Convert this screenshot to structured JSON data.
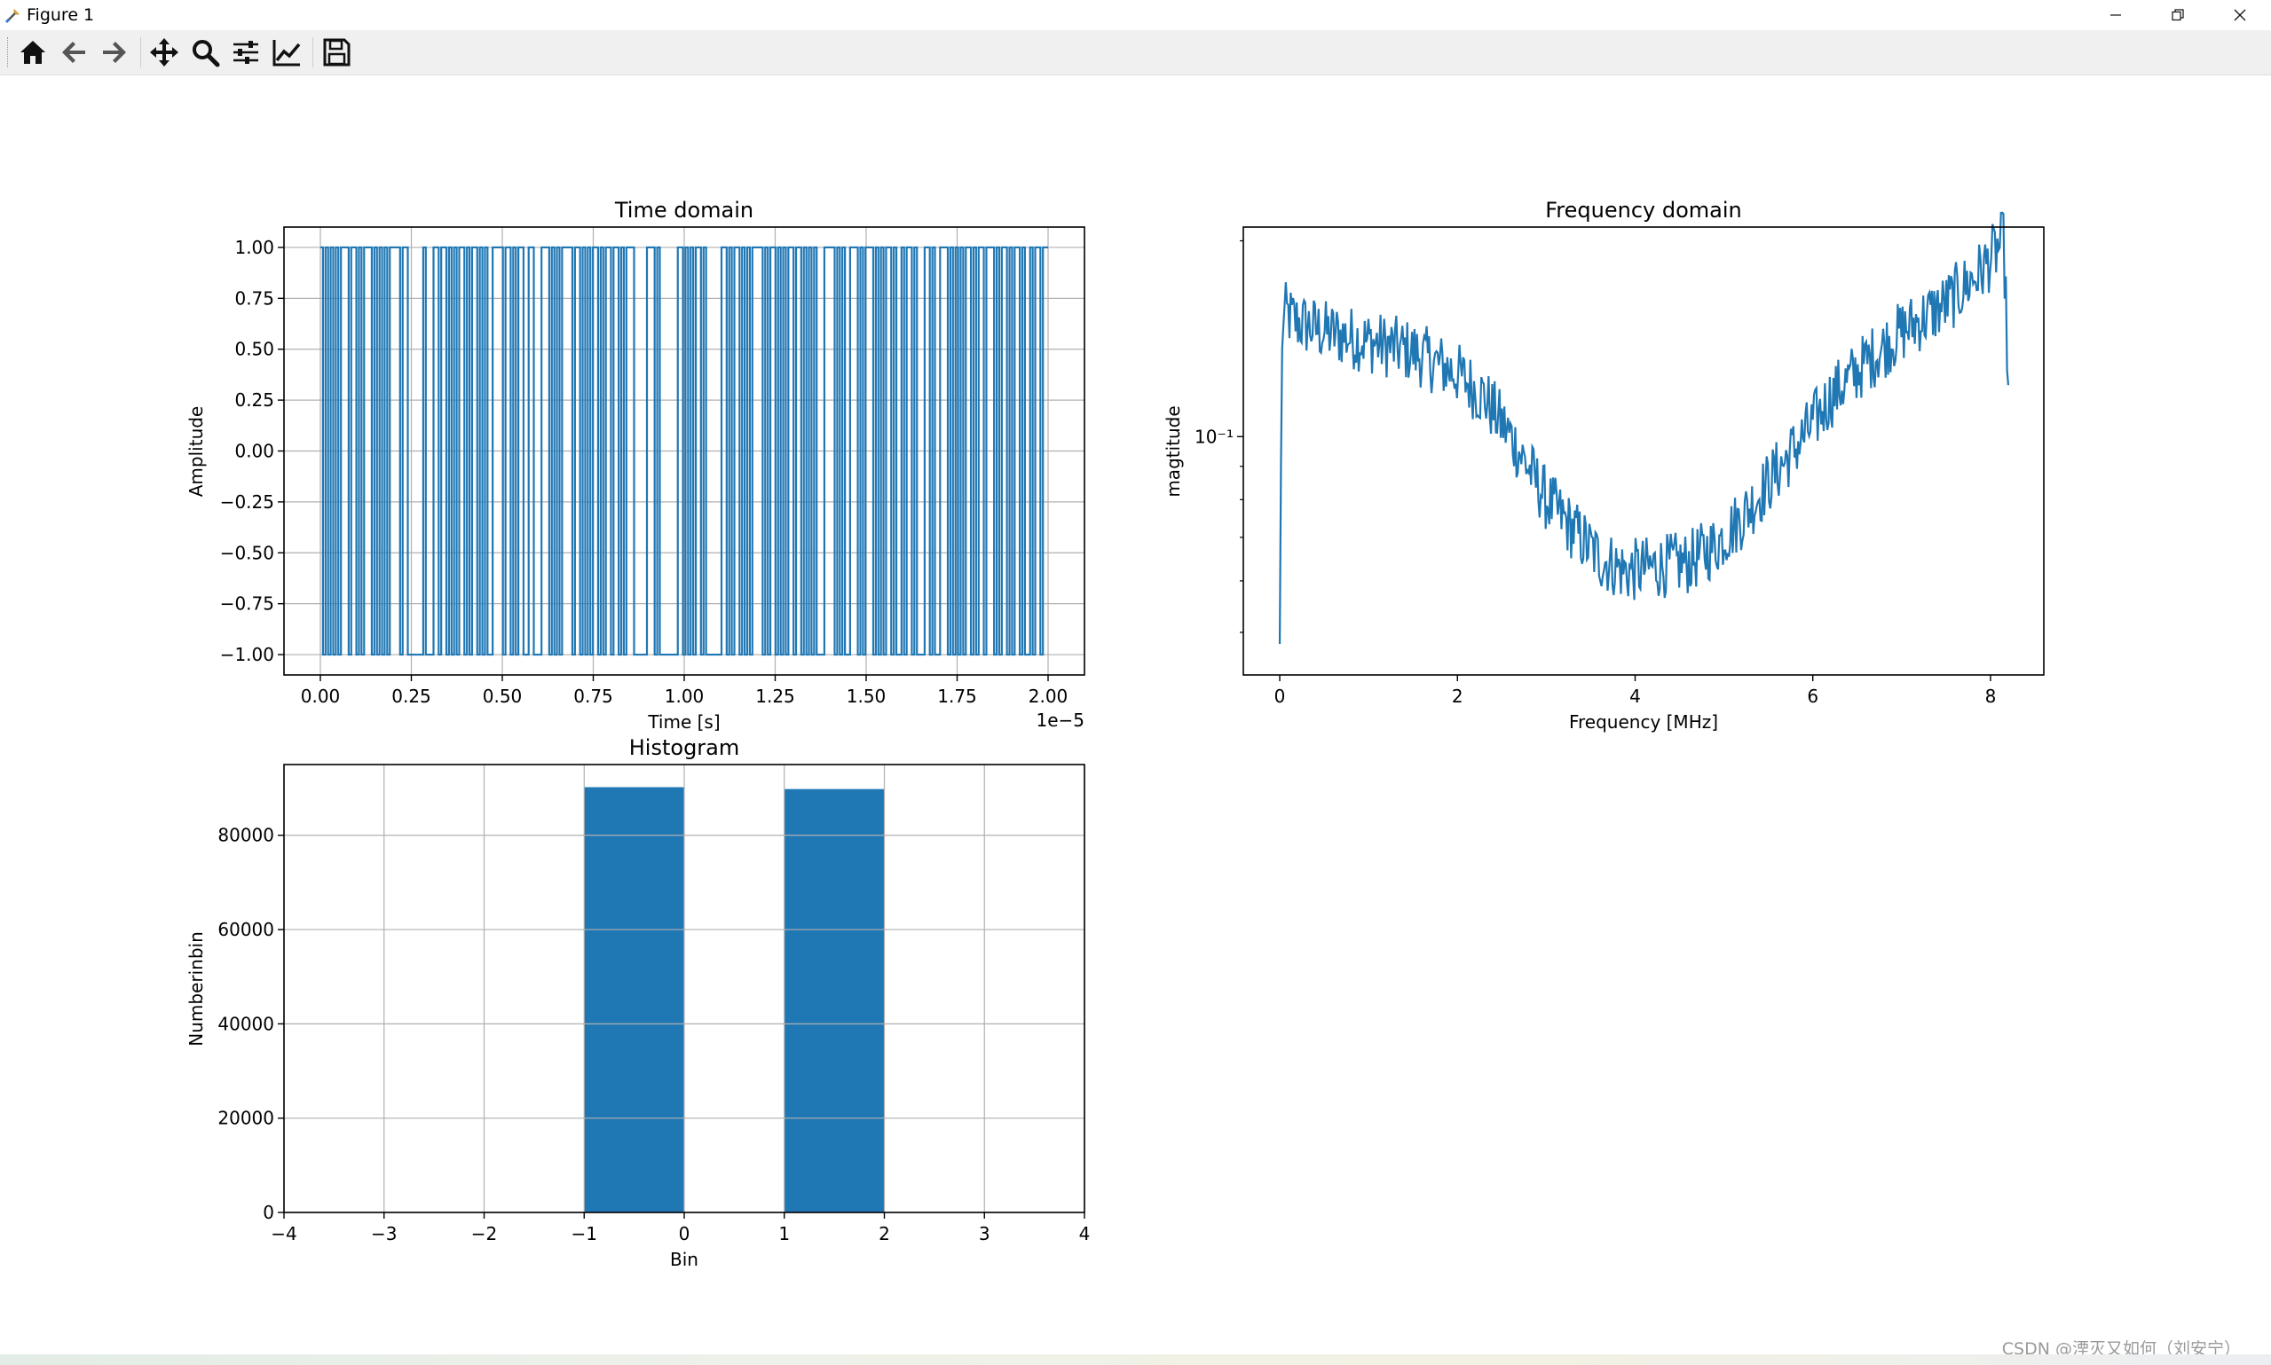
{
  "window": {
    "title": "Figure 1"
  },
  "toolbar": {
    "buttons": [
      {
        "name": "home-button",
        "icon": "home-icon"
      },
      {
        "name": "back-button",
        "icon": "arrow-left-icon"
      },
      {
        "name": "forward-button",
        "icon": "arrow-right-icon"
      },
      {
        "name": "pan-button",
        "icon": "move-icon"
      },
      {
        "name": "zoom-button",
        "icon": "magnifier-icon"
      },
      {
        "name": "configure-subplots-button",
        "icon": "sliders-icon"
      },
      {
        "name": "edit-axes-button",
        "icon": "line-chart-icon"
      },
      {
        "name": "save-button",
        "icon": "floppy-disk-icon"
      }
    ]
  },
  "watermark": "CSDN @湮灭又如何（刘安宁）",
  "colors": {
    "series": "#1f77b4",
    "grid": "#b0b0b0",
    "toolbar_bg": "#f0f0f0"
  },
  "chart_data": [
    {
      "type": "line",
      "title": "Time domain",
      "xlabel": "Time [s]",
      "ylabel": "Amplitude",
      "x_offset_label": "1e−5",
      "xlim": [
        -0.1,
        2.1
      ],
      "ylim": [
        -1.1,
        1.1
      ],
      "xticks": [
        0.0,
        0.25,
        0.5,
        0.75,
        1.0,
        1.25,
        1.5,
        1.75,
        2.0
      ],
      "xticklabels": [
        "0.00",
        "0.25",
        "0.50",
        "0.75",
        "1.00",
        "1.25",
        "1.50",
        "1.75",
        "2.00"
      ],
      "yticks": [
        1.0,
        0.75,
        0.5,
        0.25,
        0.0,
        -0.25,
        -0.5,
        -0.75,
        -1.0
      ],
      "yticklabels": [
        "1.00",
        "0.75",
        "0.50",
        "0.25",
        "0.00",
        "−0.25",
        "−0.50",
        "−0.75",
        "−1.00"
      ],
      "grid": true,
      "series": [
        {
          "x_range": [
            0.0,
            2.0
          ],
          "levels": [
            1,
            -1,
            1,
            -1,
            1,
            -1,
            1,
            -1,
            1,
            1,
            1,
            -1,
            1,
            1,
            -1,
            1,
            -1,
            1,
            1,
            1,
            -1,
            1,
            -1,
            1,
            -1,
            1,
            -1,
            1,
            1,
            1,
            1,
            -1,
            1,
            1,
            -1,
            -1,
            -1,
            -1,
            -1,
            -1,
            1,
            -1,
            -1,
            -1,
            1,
            1,
            -1,
            1,
            1,
            -1,
            1,
            -1,
            1,
            -1,
            1,
            1,
            -1,
            1,
            -1,
            1,
            1,
            -1,
            1,
            -1,
            1,
            -1,
            -1,
            1,
            1,
            1,
            1,
            -1,
            1,
            1,
            -1,
            1,
            -1,
            1,
            1,
            -1,
            -1,
            1,
            1,
            -1,
            -1,
            -1,
            1,
            1,
            1,
            -1,
            1,
            -1,
            1,
            -1,
            1,
            1,
            1,
            1,
            -1,
            1,
            1,
            -1,
            1,
            -1,
            1,
            -1,
            1,
            1,
            -1,
            1,
            -1,
            1,
            1,
            -1,
            1,
            1,
            -1,
            1,
            -1,
            1,
            1,
            1,
            -1,
            -1,
            -1,
            -1,
            -1,
            1,
            1,
            1,
            -1,
            1,
            -1,
            -1,
            -1,
            -1,
            -1,
            -1,
            -1,
            1,
            1,
            -1,
            1,
            -1,
            1,
            -1,
            1,
            1,
            -1,
            1,
            -1,
            -1,
            -1,
            -1,
            -1,
            -1,
            1,
            1,
            -1,
            1,
            -1,
            1,
            1,
            -1,
            1,
            -1,
            1,
            -1,
            1,
            1,
            1,
            1,
            -1,
            1,
            -1,
            1,
            1,
            -1,
            1,
            -1,
            1,
            -1,
            1,
            1,
            -1,
            1,
            1,
            -1,
            1,
            -1,
            1,
            -1,
            1,
            -1,
            -1,
            -1,
            1,
            1,
            1,
            1,
            -1,
            1,
            -1,
            1,
            -1,
            -1,
            1,
            1,
            1,
            -1,
            1,
            -1,
            1,
            1,
            1,
            -1,
            1,
            -1,
            1,
            -1,
            1,
            1,
            -1,
            1,
            -1,
            -1,
            1,
            -1,
            1,
            1,
            -1,
            1,
            -1,
            -1,
            -1,
            1,
            1,
            -1,
            1,
            -1,
            -1,
            1,
            1,
            1,
            -1,
            1,
            -1,
            1,
            -1,
            1,
            -1,
            1,
            1,
            -1,
            1,
            -1,
            1,
            1,
            -1,
            1,
            1,
            1,
            -1,
            1,
            -1,
            1,
            1,
            -1,
            1,
            -1,
            1,
            1,
            -1,
            1,
            -1,
            -1,
            1,
            -1,
            1,
            1,
            -1,
            1,
            1
          ]
        }
      ]
    },
    {
      "type": "line",
      "title": "Frequency domain",
      "xlabel": "Frequency [MHz]",
      "ylabel": "magtitude",
      "yscale": "log",
      "xlim": [
        -0.41,
        8.6
      ],
      "ylim": [
        0.043,
        0.21
      ],
      "xticks": [
        0,
        2,
        4,
        6,
        8
      ],
      "xticklabels": [
        "0",
        "2",
        "4",
        "6",
        "8"
      ],
      "ytick_major_label": "10⁻¹",
      "grid": false,
      "anchors": [
        [
          0.0,
          0.048
        ],
        [
          0.02,
          0.12
        ],
        [
          0.04,
          0.155
        ],
        [
          0.2,
          0.15
        ],
        [
          0.5,
          0.145
        ],
        [
          1.0,
          0.14
        ],
        [
          1.5,
          0.135
        ],
        [
          2.0,
          0.125
        ],
        [
          2.3,
          0.115
        ],
        [
          2.6,
          0.1
        ],
        [
          3.0,
          0.08
        ],
        [
          3.3,
          0.072
        ],
        [
          3.6,
          0.065
        ],
        [
          3.9,
          0.062
        ],
        [
          4.2,
          0.063
        ],
        [
          4.6,
          0.064
        ],
        [
          4.9,
          0.068
        ],
        [
          5.2,
          0.075
        ],
        [
          5.5,
          0.085
        ],
        [
          5.9,
          0.1
        ],
        [
          6.2,
          0.115
        ],
        [
          6.6,
          0.13
        ],
        [
          7.0,
          0.145
        ],
        [
          7.5,
          0.16
        ],
        [
          7.9,
          0.18
        ],
        [
          8.15,
          0.2
        ],
        [
          8.2,
          0.12
        ]
      ],
      "series": [
        {
          "name": "",
          "noise_db": 0.05
        }
      ]
    },
    {
      "type": "bar",
      "title": "Histogram",
      "xlabel": "Bin",
      "ylabel": "Numberinbin",
      "xlim": [
        -4,
        4
      ],
      "ylim": [
        0,
        95000
      ],
      "xticks": [
        -4,
        -3,
        -2,
        -1,
        0,
        1,
        2,
        3,
        4
      ],
      "xticklabels": [
        "−4",
        "−3",
        "−2",
        "−1",
        "0",
        "1",
        "2",
        "3",
        "4"
      ],
      "yticks": [
        0,
        20000,
        40000,
        60000,
        80000
      ],
      "yticklabels": [
        "0",
        "20000",
        "40000",
        "60000",
        "80000"
      ],
      "grid": true,
      "bars": [
        {
          "left": -1,
          "right": 0,
          "value": 90200
        },
        {
          "left": 1,
          "right": 2,
          "value": 89800
        }
      ]
    }
  ]
}
